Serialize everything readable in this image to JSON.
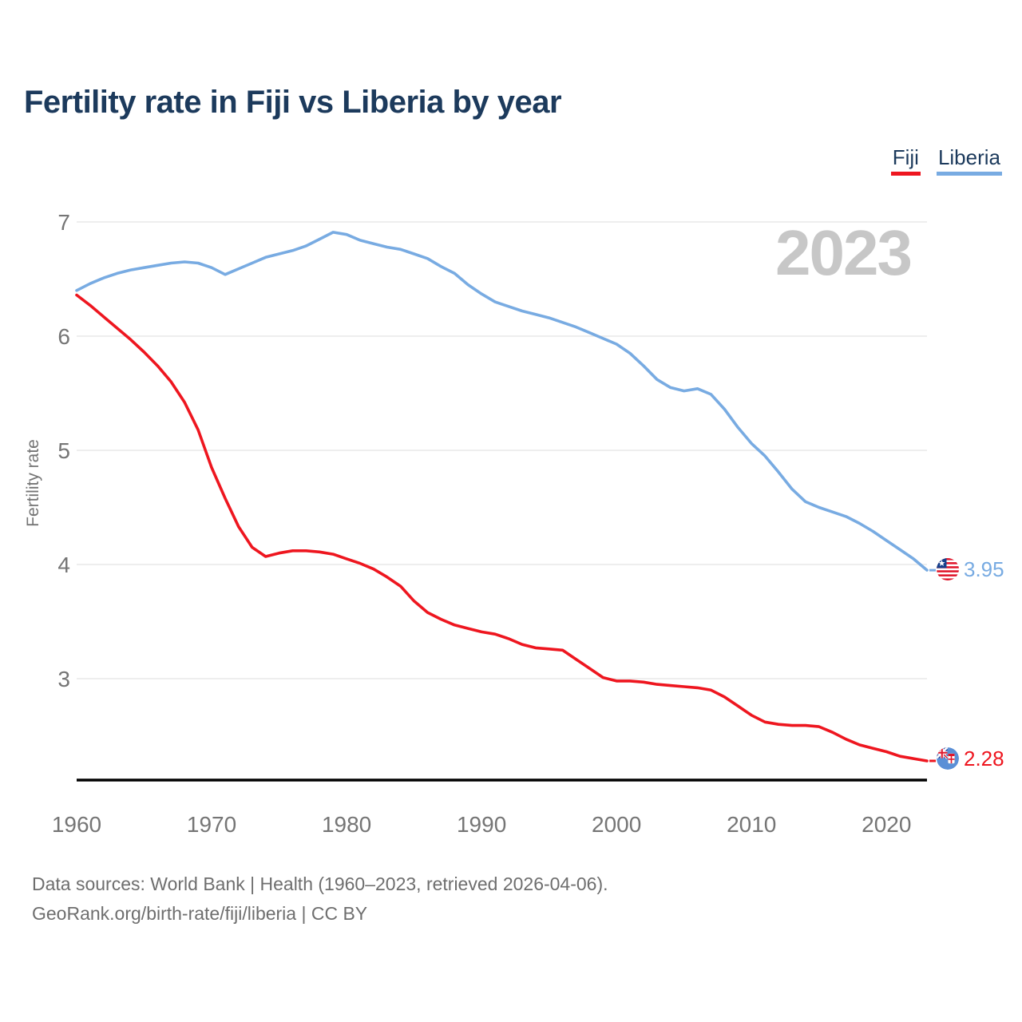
{
  "title": "Fertility rate in Fiji vs Liberia by year",
  "watermark": "2023",
  "legend": [
    {
      "label": "Fiji",
      "color": "#ee161f"
    },
    {
      "label": "Liberia",
      "color": "#78abe2"
    }
  ],
  "icons": {
    "fiji": "fiji-flag-icon",
    "liberia": "liberia-flag-icon"
  },
  "footer": {
    "line1": "Data sources: World Bank | Health (1960–2023, retrieved 2026-04-06).",
    "line2": "GeoRank.org/birth-rate/fiji/liberia | CC BY"
  },
  "chart_data": {
    "type": "line",
    "title": "Fertility rate in Fiji vs Liberia by year",
    "xlabel": "",
    "ylabel": "Fertility rate",
    "grid": "horizontal",
    "legend_position": "top-right",
    "x_ticks": [
      1960,
      1970,
      1980,
      1990,
      2000,
      2010,
      2020
    ],
    "y_ticks": [
      7,
      6,
      5,
      4,
      3
    ],
    "ylim": [
      2.1,
      7.15
    ],
    "x": [
      1960,
      1961,
      1962,
      1963,
      1964,
      1965,
      1966,
      1967,
      1968,
      1969,
      1970,
      1971,
      1972,
      1973,
      1974,
      1975,
      1976,
      1977,
      1978,
      1979,
      1980,
      1981,
      1982,
      1983,
      1984,
      1985,
      1986,
      1987,
      1988,
      1989,
      1990,
      1991,
      1992,
      1993,
      1994,
      1995,
      1996,
      1997,
      1998,
      1999,
      2000,
      2001,
      2002,
      2003,
      2004,
      2005,
      2006,
      2007,
      2008,
      2009,
      2010,
      2011,
      2012,
      2013,
      2014,
      2015,
      2016,
      2017,
      2018,
      2019,
      2020,
      2021,
      2022,
      2023
    ],
    "series": [
      {
        "name": "Fiji",
        "color": "#ee161f",
        "end_label": "2.28",
        "values": [
          6.36,
          6.27,
          6.17,
          6.07,
          5.97,
          5.86,
          5.74,
          5.6,
          5.42,
          5.18,
          4.85,
          4.58,
          4.33,
          4.15,
          4.07,
          4.1,
          4.12,
          4.12,
          4.11,
          4.09,
          4.05,
          4.01,
          3.96,
          3.89,
          3.81,
          3.68,
          3.58,
          3.52,
          3.47,
          3.44,
          3.41,
          3.39,
          3.35,
          3.3,
          3.27,
          3.26,
          3.25,
          3.17,
          3.09,
          3.01,
          2.98,
          2.98,
          2.97,
          2.95,
          2.94,
          2.93,
          2.92,
          2.9,
          2.84,
          2.76,
          2.68,
          2.62,
          2.6,
          2.59,
          2.59,
          2.58,
          2.53,
          2.47,
          2.42,
          2.39,
          2.36,
          2.32,
          2.3,
          2.28
        ]
      },
      {
        "name": "Liberia",
        "color": "#78abe2",
        "end_label": "3.95",
        "values": [
          6.4,
          6.46,
          6.51,
          6.55,
          6.58,
          6.6,
          6.62,
          6.64,
          6.65,
          6.64,
          6.6,
          6.54,
          6.59,
          6.64,
          6.69,
          6.72,
          6.75,
          6.79,
          6.85,
          6.91,
          6.89,
          6.84,
          6.81,
          6.78,
          6.76,
          6.72,
          6.68,
          6.61,
          6.55,
          6.45,
          6.37,
          6.3,
          6.26,
          6.22,
          6.19,
          6.16,
          6.12,
          6.08,
          6.03,
          5.98,
          5.93,
          5.85,
          5.74,
          5.62,
          5.55,
          5.52,
          5.54,
          5.49,
          5.36,
          5.2,
          5.06,
          4.95,
          4.81,
          4.66,
          4.55,
          4.5,
          4.46,
          4.42,
          4.36,
          4.29,
          4.21,
          4.13,
          4.05,
          3.95
        ]
      }
    ]
  }
}
